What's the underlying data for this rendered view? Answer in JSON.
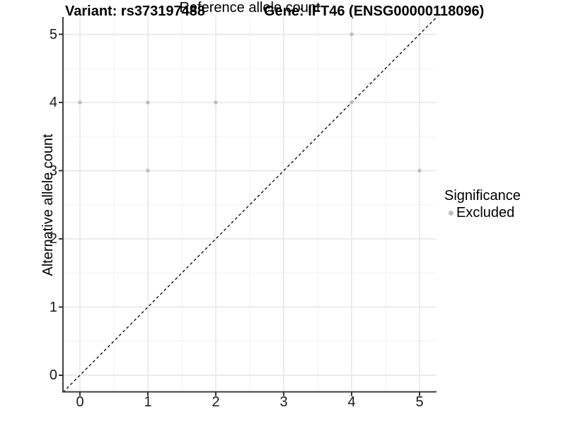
{
  "titles": {
    "variant": "Variant: rs373197488",
    "gene": "Gene: IFT46 (ENSG00000118096)"
  },
  "axes": {
    "x_label": "Reference allele count",
    "y_label": "Alternative allele count",
    "x_ticks": [
      "0",
      "1",
      "2",
      "3",
      "4",
      "5"
    ],
    "y_ticks": [
      "0",
      "1",
      "2",
      "3",
      "4",
      "5"
    ]
  },
  "legend": {
    "title": "Significance",
    "items": [
      {
        "label": "Excluded",
        "color": "#bdbdbd",
        "marker": "dot"
      }
    ]
  },
  "colors": {
    "point": "#bdbdbd",
    "grid_major": "#e6e6e6",
    "grid_minor": "#f2f2f2",
    "axis_line": "#404040",
    "tick_mark": "#333333",
    "diagonal": "#000000",
    "background": "#ffffff"
  },
  "chart_data": {
    "type": "scatter",
    "title": "Variant: rs373197488 / Gene: IFT46 (ENSG00000118096)",
    "xlabel": "Reference allele count",
    "ylabel": "Alternative allele count",
    "xlim": [
      -0.25,
      5.25
    ],
    "ylim": [
      -0.25,
      5.25
    ],
    "x_ticks": [
      0,
      1,
      2,
      3,
      4,
      5
    ],
    "y_ticks": [
      0,
      1,
      2,
      3,
      4,
      5
    ],
    "grid": "major-and-minor",
    "minor_tick_interval": 0.5,
    "legend_position": "right",
    "series": [
      {
        "name": "Excluded",
        "color": "#bdbdbd",
        "points": [
          {
            "x": 0,
            "y": 4
          },
          {
            "x": 1,
            "y": 4
          },
          {
            "x": 2,
            "y": 4
          },
          {
            "x": 1,
            "y": 3
          },
          {
            "x": 4,
            "y": 4
          },
          {
            "x": 4,
            "y": 5
          },
          {
            "x": 5,
            "y": 3
          }
        ]
      }
    ],
    "reference_line": {
      "description": "identity line y = x",
      "style": "dashed",
      "color": "#000000",
      "from": [
        -0.25,
        -0.25
      ],
      "to": [
        5.25,
        5.25
      ]
    }
  }
}
